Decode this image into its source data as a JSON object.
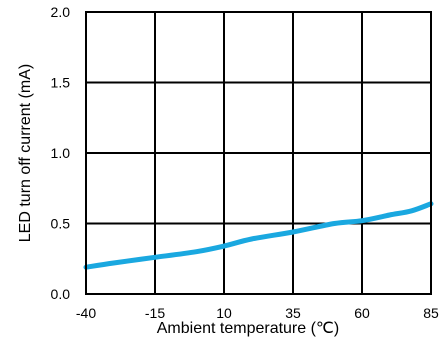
{
  "chart_data": {
    "type": "line",
    "xlabel": "Ambient temperature (℃)",
    "ylabel": "LED turn off current (mA)",
    "xlim": [
      -40,
      85
    ],
    "ylim": [
      0.0,
      2.0
    ],
    "x_ticks": [
      -40,
      -15,
      10,
      35,
      60,
      85
    ],
    "y_ticks": [
      0.0,
      0.5,
      1.0,
      1.5,
      2.0
    ],
    "x_tick_labels": [
      "-40",
      "-15",
      "10",
      "35",
      "60",
      "85"
    ],
    "y_tick_labels": [
      "0.0",
      "0.5",
      "1.0",
      "1.5",
      "2.0"
    ],
    "grid": true,
    "series": [
      {
        "color": "#1aa8e0",
        "x": [
          -40,
          -30,
          -15,
          0,
          10,
          20,
          35,
          50,
          60,
          70,
          78,
          85
        ],
        "y": [
          0.19,
          0.22,
          0.26,
          0.3,
          0.34,
          0.39,
          0.44,
          0.5,
          0.52,
          0.56,
          0.59,
          0.64
        ]
      }
    ]
  }
}
